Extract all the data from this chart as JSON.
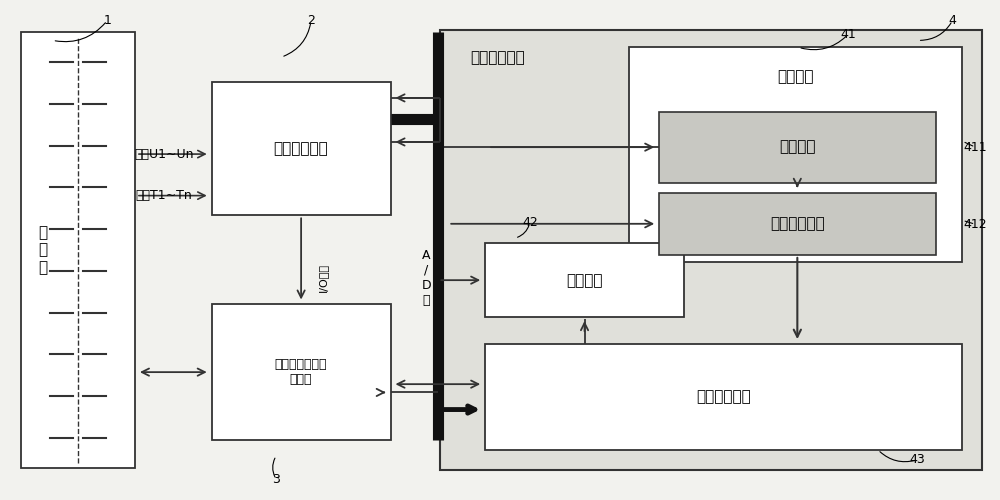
{
  "bg_color": "#f2f2ee",
  "box_color": "#ffffff",
  "box_edge": "#333333",
  "line_color": "#333333",
  "thick_line_color": "#111111",
  "gray_box": "#e0e0da",
  "dark_gray_box": "#c8c8c2",
  "label_1": "1",
  "label_2": "2",
  "label_3": "3",
  "label_4": "4",
  "label_41": "41",
  "label_411": "411",
  "label_412": "412",
  "label_42": "42",
  "label_43": "43",
  "text_battery_group": "电\n池\n组",
  "text_bms": "电池管理单元",
  "text_switch": "可控双向开关阵\n列模组",
  "text_energy": "能量转移模块",
  "text_charge_unit": "充电单元",
  "text_vehicle_power": "车载电源",
  "text_voltage_reg": "可控稳压模块",
  "text_discharge": "放电单元",
  "text_supercap": "超级电容模块",
  "text_voltage": "电压U1~Un",
  "text_temperature": "温度T1~Tn",
  "text_io": "I/O输出",
  "text_ad": "A\n/\nD\n口",
  "font_size_main": 11,
  "font_size_small": 9,
  "font_size_label": 9,
  "font_size_io": 8
}
